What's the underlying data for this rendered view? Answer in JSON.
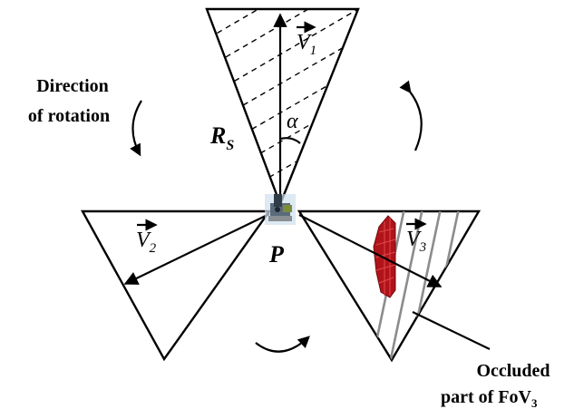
{
  "labels": {
    "direction_line1": "Direction",
    "direction_line2": "of rotation",
    "rs_main": "R",
    "rs_sub": "S",
    "alpha": "α",
    "p": "P",
    "v1_main": "V",
    "v1_sub": "1",
    "v2_main": "V",
    "v2_sub": "2",
    "v3_main": "V",
    "v3_sub": "3",
    "occluded_line1": "Occluded",
    "occluded_line2_main": "part of FoV",
    "occluded_line2_sub": "3"
  },
  "colors": {
    "outline": "#000000",
    "occlusion_lines": "#8c8c8c",
    "obstacle": "#b0141a",
    "background": "#ffffff"
  },
  "icons": {
    "sensor": "sensor-node-icon",
    "obstacle": "obstacle-icon"
  }
}
